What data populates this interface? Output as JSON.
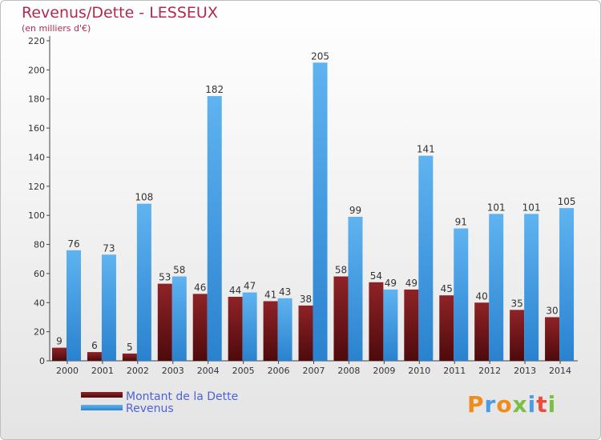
{
  "header": {
    "title": "Revenus/Dette - LESSEUX",
    "subtitle": "(en milliers d'€)"
  },
  "logo": {
    "text": "Proxiti",
    "colors": [
      "#f08c1e",
      "#4a9be8",
      "#f08c1e",
      "#7bc043",
      "#4a9be8",
      "#e94e3d",
      "#7bc043"
    ]
  },
  "colors": {
    "dette": "#7a1518",
    "revenus": "#3a9ae6",
    "title": "#b12a4f",
    "legend_text": "#4b63d9"
  },
  "chart_data": {
    "type": "bar",
    "title": "Revenus/Dette - LESSEUX",
    "subtitle": "(en milliers d'€)",
    "categories": [
      "2000",
      "2001",
      "2002",
      "2003",
      "2004",
      "2005",
      "2006",
      "2007",
      "2008",
      "2009",
      "2010",
      "2011",
      "2012",
      "2013",
      "2014"
    ],
    "series": [
      {
        "name": "Montant de la Dette",
        "values": [
          9,
          6,
          5,
          53,
          46,
          44,
          41,
          38,
          58,
          54,
          49,
          45,
          40,
          35,
          30
        ]
      },
      {
        "name": "Revenus",
        "values": [
          76,
          73,
          108,
          58,
          182,
          47,
          43,
          205,
          99,
          49,
          141,
          91,
          101,
          101,
          105
        ]
      }
    ],
    "ylim": [
      0,
      220
    ],
    "yticks": [
      0,
      20,
      40,
      60,
      80,
      100,
      120,
      140,
      160,
      180,
      200,
      220
    ],
    "grid": false,
    "legend_placement": "bottom-left"
  }
}
